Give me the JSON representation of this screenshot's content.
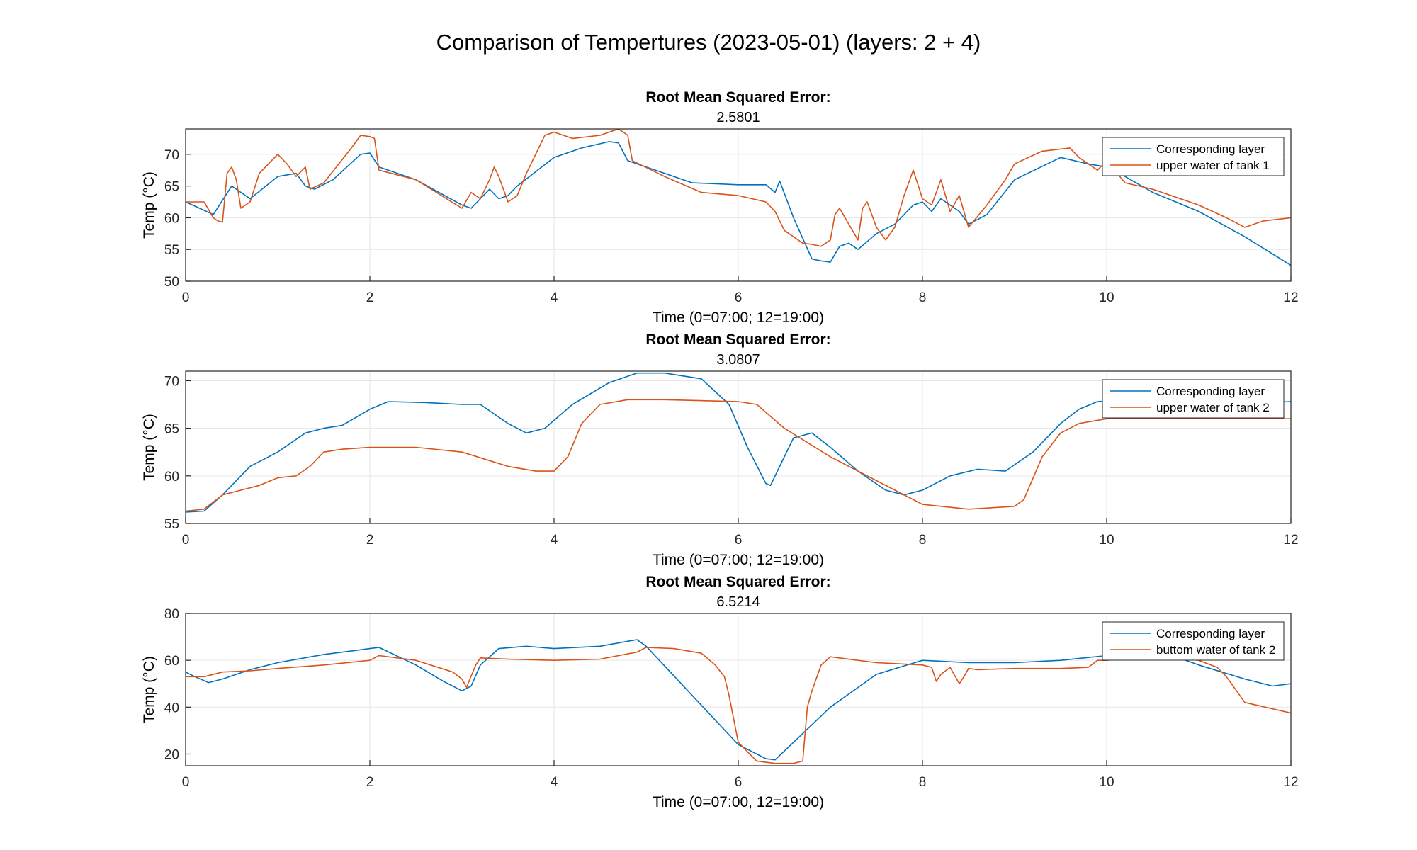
{
  "figure": {
    "title": "Comparison of Tempertures (2023-05-01) (layers: 2 + 4)"
  },
  "colors": {
    "series_blue": "#0072BD",
    "series_orange": "#D95319",
    "grid": "#e6e6e6",
    "axis": "#262626"
  },
  "chart_data": [
    {
      "type": "line",
      "title": "Root Mean Squared Error:",
      "subtitle": "2.5801",
      "xlabel": "Time (0=07:00; 12=19:00)",
      "ylabel": "Temp (°C)",
      "xlim": [
        0,
        12
      ],
      "ylim": [
        50,
        74
      ],
      "xticks": [
        0,
        2,
        4,
        6,
        8,
        10,
        12
      ],
      "yticks": [
        50,
        55,
        60,
        65,
        70
      ],
      "grid": true,
      "legend_position": "top-right",
      "series": [
        {
          "name": "Corresponding layer",
          "color": "#0072BD",
          "x": [
            0,
            0.3,
            0.5,
            0.7,
            1.0,
            1.2,
            1.3,
            1.4,
            1.6,
            1.9,
            2.0,
            2.1,
            2.5,
            3.0,
            3.1,
            3.3,
            3.4,
            3.5,
            3.6,
            4.0,
            4.3,
            4.6,
            4.7,
            4.8,
            4.9,
            5.5,
            6.0,
            6.3,
            6.4,
            6.45,
            6.6,
            6.8,
            6.9,
            7.0,
            7.1,
            7.2,
            7.3,
            7.5,
            7.7,
            7.9,
            8.0,
            8.1,
            8.2,
            8.4,
            8.5,
            8.7,
            9.0,
            9.5,
            9.8,
            10.0,
            10.2,
            10.5,
            11.0,
            11.5,
            12.0
          ],
          "y": [
            62.5,
            60.5,
            65,
            63,
            66.5,
            67,
            65,
            64.5,
            66,
            70,
            70.2,
            68,
            66,
            62,
            61.5,
            64.5,
            63,
            63.5,
            65,
            69.5,
            71,
            72,
            71.8,
            69,
            68.5,
            65.5,
            65.2,
            65.2,
            64,
            65.8,
            60,
            53.5,
            53.2,
            53,
            55.5,
            56,
            55,
            57.5,
            59,
            62,
            62.5,
            61,
            63,
            61,
            59,
            60.5,
            66,
            69.5,
            68.5,
            68,
            66.5,
            64,
            61,
            57,
            52.5
          ]
        },
        {
          "name": "upper water of tank 1",
          "color": "#D95319",
          "x": [
            0,
            0.2,
            0.3,
            0.35,
            0.4,
            0.45,
            0.5,
            0.55,
            0.6,
            0.7,
            0.8,
            1.0,
            1.1,
            1.2,
            1.3,
            1.35,
            1.5,
            1.8,
            1.9,
            2.0,
            2.05,
            2.1,
            2.5,
            3.0,
            3.1,
            3.2,
            3.3,
            3.35,
            3.4,
            3.5,
            3.6,
            3.7,
            3.9,
            4.0,
            4.2,
            4.5,
            4.7,
            4.8,
            4.85,
            5.2,
            5.6,
            6.0,
            6.3,
            6.4,
            6.5,
            6.7,
            6.8,
            6.9,
            7.0,
            7.05,
            7.1,
            7.2,
            7.3,
            7.35,
            7.4,
            7.5,
            7.6,
            7.7,
            7.8,
            7.9,
            8.0,
            8.1,
            8.2,
            8.3,
            8.4,
            8.5,
            8.7,
            8.9,
            9.0,
            9.3,
            9.6,
            9.7,
            9.8,
            9.9,
            10.0,
            10.2,
            10.5,
            11.0,
            11.3,
            11.5,
            11.7,
            12.0
          ],
          "y": [
            62.5,
            62.5,
            60,
            59.5,
            59.3,
            67,
            68,
            66,
            61.5,
            62.5,
            67,
            70,
            68.5,
            66.5,
            68,
            64.5,
            65.5,
            71,
            73,
            72.8,
            72.5,
            67.5,
            66,
            61.5,
            64,
            63,
            66,
            68,
            66.5,
            62.5,
            63.5,
            67,
            73,
            73.5,
            72.5,
            73,
            74,
            73,
            69,
            66.5,
            64,
            63.5,
            62.5,
            61,
            58,
            56,
            55.8,
            55.5,
            56.5,
            60.5,
            61.5,
            59,
            56.5,
            61.5,
            62.5,
            58.5,
            56.5,
            58.5,
            63.5,
            67.5,
            63,
            62,
            66,
            61,
            63.5,
            58.5,
            62,
            66,
            68.5,
            70.5,
            71,
            69.5,
            68.5,
            67.5,
            69,
            65.5,
            64.5,
            62,
            60,
            58.5,
            59.5,
            60
          ]
        }
      ]
    },
    {
      "type": "line",
      "title": "Root Mean Squared Error:",
      "subtitle": "3.0807",
      "xlabel": "Time (0=07:00; 12=19:00)",
      "ylabel": "Temp (°C)",
      "xlim": [
        0,
        12
      ],
      "ylim": [
        55,
        71
      ],
      "xticks": [
        0,
        2,
        4,
        6,
        8,
        10,
        12
      ],
      "yticks": [
        55,
        60,
        65,
        70
      ],
      "grid": true,
      "legend_position": "top-right",
      "series": [
        {
          "name": "Corresponding layer",
          "color": "#0072BD",
          "x": [
            0,
            0.2,
            0.4,
            0.7,
            1.0,
            1.3,
            1.5,
            1.7,
            2.0,
            2.2,
            2.6,
            3.0,
            3.2,
            3.5,
            3.7,
            3.9,
            4.2,
            4.6,
            4.9,
            5.2,
            5.6,
            5.9,
            6.1,
            6.3,
            6.35,
            6.45,
            6.6,
            6.8,
            7.0,
            7.3,
            7.6,
            7.8,
            8.0,
            8.3,
            8.6,
            8.9,
            9.2,
            9.5,
            9.7,
            9.9,
            10.2,
            10.6,
            11.0,
            11.5,
            12.0
          ],
          "y": [
            56.2,
            56.3,
            58,
            61,
            62.5,
            64.5,
            65,
            65.3,
            67,
            67.8,
            67.7,
            67.5,
            67.5,
            65.5,
            64.5,
            65,
            67.5,
            69.8,
            70.8,
            70.8,
            70.2,
            67.5,
            63,
            59.2,
            59,
            61,
            64,
            64.5,
            63,
            60.5,
            58.5,
            58,
            58.5,
            60,
            60.7,
            60.5,
            62.5,
            65.5,
            67,
            67.8,
            68,
            67.8,
            67.5,
            67.6,
            67.8
          ]
        },
        {
          "name": "upper water of tank 2",
          "color": "#D95319",
          "x": [
            0,
            0.2,
            0.4,
            0.6,
            0.8,
            1.0,
            1.2,
            1.35,
            1.5,
            1.7,
            2.0,
            2.5,
            3.0,
            3.5,
            3.8,
            4.0,
            4.15,
            4.3,
            4.5,
            4.8,
            5.2,
            6.0,
            6.2,
            6.5,
            7.0,
            7.5,
            8.0,
            8.5,
            9.0,
            9.1,
            9.3,
            9.5,
            9.7,
            10.0,
            10.5,
            11.0,
            12.0
          ],
          "y": [
            56.3,
            56.5,
            58,
            58.5,
            59,
            59.8,
            60,
            61,
            62.5,
            62.8,
            63,
            63,
            62.5,
            61,
            60.5,
            60.5,
            62,
            65.5,
            67.5,
            68,
            68,
            67.8,
            67.5,
            65,
            62,
            59.5,
            57,
            56.5,
            56.8,
            57.5,
            62,
            64.5,
            65.5,
            66,
            66,
            66,
            66
          ]
        }
      ]
    },
    {
      "type": "line",
      "title": "Root Mean Squared Error:",
      "subtitle": "6.5214",
      "xlabel": "Time (0=07:00, 12=19:00)",
      "ylabel": "Temp (°C)",
      "xlim": [
        0,
        12
      ],
      "ylim": [
        15,
        80
      ],
      "xticks": [
        0,
        2,
        4,
        6,
        8,
        10,
        12
      ],
      "yticks": [
        20,
        40,
        60,
        80
      ],
      "grid": true,
      "legend_position": "top-right",
      "series": [
        {
          "name": "Corresponding layer",
          "color": "#0072BD",
          "x": [
            0,
            0.1,
            0.25,
            0.4,
            0.7,
            1.0,
            1.5,
            2.0,
            2.1,
            2.5,
            2.8,
            3.0,
            3.1,
            3.2,
            3.4,
            3.7,
            4.0,
            4.5,
            4.9,
            5.0,
            5.5,
            6.0,
            6.3,
            6.4,
            6.6,
            7.0,
            7.5,
            8.0,
            8.5,
            9.0,
            9.5,
            10.0,
            10.5,
            11.0,
            11.5,
            11.8,
            12.0
          ],
          "y": [
            55,
            53,
            50.5,
            52,
            56,
            59,
            62.5,
            65,
            65.5,
            58,
            51,
            47,
            49,
            58,
            65,
            66,
            65,
            66,
            68.8,
            66,
            45,
            24,
            18,
            17.5,
            25,
            40,
            54,
            60,
            59,
            59,
            60,
            62,
            65,
            58,
            52,
            49,
            50
          ]
        },
        {
          "name": "buttom water of tank 2",
          "color": "#D95319",
          "x": [
            0,
            0.2,
            0.4,
            0.7,
            1.0,
            1.5,
            2.0,
            2.1,
            2.5,
            2.9,
            3.0,
            3.05,
            3.15,
            3.2,
            3.5,
            4.0,
            4.5,
            4.9,
            5.0,
            5.3,
            5.6,
            5.75,
            5.85,
            5.9,
            6.0,
            6.2,
            6.4,
            6.5,
            6.6,
            6.7,
            6.75,
            6.8,
            6.9,
            7.0,
            7.5,
            8.0,
            8.1,
            8.15,
            8.2,
            8.3,
            8.4,
            8.45,
            8.5,
            8.6,
            9.0,
            9.5,
            9.8,
            9.9,
            10.0,
            10.5,
            11.0,
            11.2,
            11.3,
            11.5,
            12.0
          ],
          "y": [
            53,
            53,
            55,
            55.5,
            56.5,
            58,
            60,
            62,
            60,
            55,
            52,
            48.5,
            58,
            61,
            60.5,
            60,
            60.5,
            63.5,
            65.5,
            65,
            63,
            58,
            53,
            45,
            25,
            17,
            16,
            16,
            16,
            17,
            40,
            47,
            58,
            61.5,
            59,
            58,
            57,
            51,
            54,
            57,
            50,
            53,
            56.5,
            56,
            56.5,
            56.5,
            57,
            60,
            60,
            62,
            60,
            57,
            53,
            42,
            37.5
          ]
        }
      ]
    }
  ]
}
